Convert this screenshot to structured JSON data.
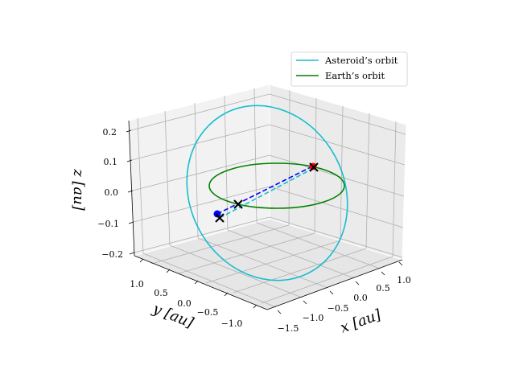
{
  "chart_data": {
    "type": "line",
    "title": "",
    "projection": "3d",
    "axes": {
      "x": {
        "label": "x [au]",
        "ticks": [
          "−1.5",
          "−1.0",
          "−0.5",
          "0.0",
          "0.5",
          "1.0"
        ]
      },
      "y": {
        "label": "y [au]",
        "ticks": [
          "1.0",
          "0.5",
          "0.0",
          "−0.5",
          "−1.0"
        ]
      },
      "z": {
        "label": "z [au]",
        "ticks": [
          "0.2",
          "0.1",
          "0.0",
          "−0.1",
          "−0.2"
        ]
      }
    },
    "grid": true,
    "legend": {
      "placement": "top-right"
    },
    "series": [
      {
        "name": "Asteroid’s orbit",
        "color": "#17becf",
        "style": "solid"
      },
      {
        "name": "Earth’s orbit",
        "color": "#008000",
        "style": "solid"
      }
    ],
    "markers": [
      {
        "kind": "point",
        "color": "#0000ff"
      },
      {
        "kind": "point",
        "color": "#ff0000"
      },
      {
        "kind": "cross",
        "color": "#000000"
      }
    ],
    "connectors": [
      {
        "color": "#0000ff",
        "style": "dashed"
      },
      {
        "color": "#17becf",
        "style": "dashed"
      }
    ]
  }
}
